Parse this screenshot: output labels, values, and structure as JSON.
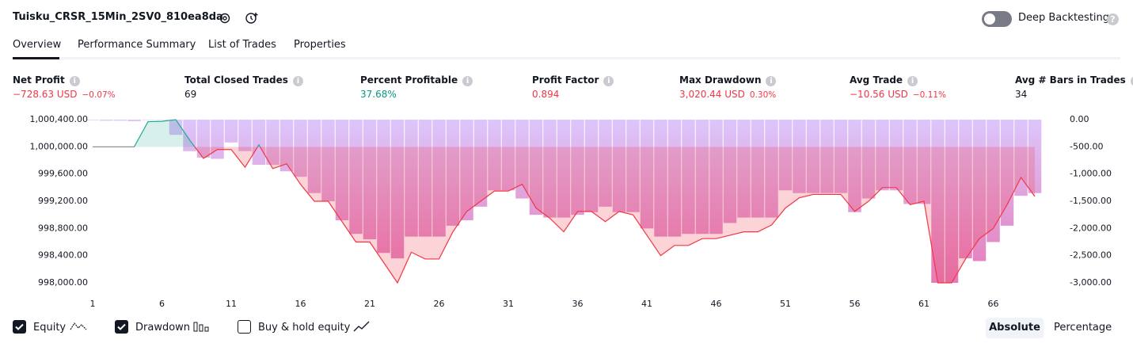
{
  "header": {
    "title": "Tuisku_CRSR_15Min_2SV0_810ea8da",
    "deep_backtesting": "Deep Backtesting"
  },
  "tabs": [
    "Overview",
    "Performance Summary",
    "List of Trades",
    "Properties"
  ],
  "metrics": [
    {
      "label": "Net Profit",
      "value": "−728.63 USD",
      "change": "−0.07%"
    },
    {
      "label": "Total Closed Trades",
      "value": "69"
    },
    {
      "label": "Percent Profitable",
      "value": "37.68%"
    },
    {
      "label": "Profit Factor",
      "value": "0.894"
    },
    {
      "label": "Max Drawdown",
      "value": "3,020.44 USD",
      "change": "0.30%"
    },
    {
      "label": "Avg Trade",
      "value": "−10.56 USD",
      "change": "−0.11%"
    },
    {
      "label": "Avg # Bars in Trades",
      "value": "34"
    }
  ],
  "chart_data": {
    "type": "combo",
    "x": [
      1,
      2,
      3,
      4,
      5,
      6,
      7,
      8,
      9,
      10,
      11,
      12,
      13,
      14,
      15,
      16,
      17,
      18,
      19,
      20,
      21,
      22,
      23,
      24,
      25,
      26,
      27,
      28,
      29,
      30,
      31,
      32,
      33,
      34,
      35,
      36,
      37,
      38,
      39,
      40,
      41,
      42,
      43,
      44,
      45,
      46,
      47,
      48,
      49,
      50,
      51,
      52,
      53,
      54,
      55,
      56,
      57,
      58,
      59,
      60,
      61,
      62,
      63,
      64,
      65,
      66,
      67,
      68,
      69
    ],
    "xlim": [
      0.6,
      71
    ],
    "xticks": [
      1,
      6,
      11,
      16,
      21,
      26,
      31,
      36,
      41,
      46,
      51,
      56,
      61,
      66
    ],
    "ylim": [
      998000,
      1000400
    ],
    "yticks": [
      {
        "value": 1000400,
        "label": "1,000,400.00"
      },
      {
        "value": 1000000,
        "label": "1,000,000.00"
      },
      {
        "value": 999600,
        "label": "999,600.00"
      },
      {
        "value": 999200,
        "label": "999,200.00"
      },
      {
        "value": 998800,
        "label": "998,800.00"
      },
      {
        "value": 998400,
        "label": "998,400.00"
      },
      {
        "value": 998000,
        "label": "998,000.00"
      }
    ],
    "y2lim": [
      -3000,
      0
    ],
    "y2ticks": [
      {
        "value": 0,
        "label": "0.00"
      },
      {
        "value": -500,
        "label": "-500.00"
      },
      {
        "value": -1000,
        "label": "-1,000.00"
      },
      {
        "value": -1500,
        "label": "-1,500.00"
      },
      {
        "value": -2000,
        "label": "-2,000.00"
      },
      {
        "value": -2500,
        "label": "-2,500.00"
      },
      {
        "value": -3000,
        "label": "-3,000.00"
      }
    ],
    "grid": false,
    "series": [
      {
        "name": "Equity",
        "type": "line",
        "color": "#f23645",
        "color_above": "#22ab94",
        "values": [
          1000000,
          1000000,
          1000000,
          1000000,
          1000370,
          1000375,
          1000400,
          1000100,
          999830,
          999960,
          999960,
          999700,
          1000030,
          999680,
          999750,
          999450,
          999200,
          999200,
          998900,
          998600,
          998600,
          998300,
          998000,
          998450,
          998350,
          998350,
          998750,
          999050,
          999200,
          999350,
          999350,
          999450,
          999100,
          998950,
          998750,
          999050,
          999050,
          998900,
          999050,
          999000,
          998700,
          998400,
          998550,
          998550,
          998650,
          998650,
          998700,
          998750,
          998750,
          998850,
          999100,
          999250,
          999300,
          999300,
          999300,
          999050,
          999200,
          999400,
          999400,
          999150,
          999200,
          998000,
          998000,
          998350,
          998650,
          998800,
          999150,
          999550,
          999270
        ]
      },
      {
        "name": "Drawdown",
        "type": "bar",
        "axis": "y2",
        "colors": [
          "#dcc6fb",
          "#e67ab7"
        ],
        "values": [
          -10,
          -20,
          -20,
          -30,
          0,
          0,
          -280,
          -580,
          -700,
          -720,
          -420,
          -580,
          -830,
          -830,
          -950,
          -1050,
          -1350,
          -1500,
          -1850,
          -2100,
          -2200,
          -2450,
          -2550,
          -2150,
          -2150,
          -2150,
          -1950,
          -1850,
          -1600,
          -1300,
          -1300,
          -1450,
          -1750,
          -1800,
          -1800,
          -1750,
          -1700,
          -1600,
          -1700,
          -1700,
          -2000,
          -2150,
          -2150,
          -2100,
          -2100,
          -2100,
          -1900,
          -1800,
          -1800,
          -1800,
          -1300,
          -1350,
          -1350,
          -1350,
          -1350,
          -1700,
          -1450,
          -1300,
          -1300,
          -1550,
          -1550,
          -3000,
          -3000,
          -2550,
          -2600,
          -2250,
          -1950,
          -1400,
          -1350
        ]
      }
    ]
  },
  "legend_extra": "Buy & hold equity",
  "view_modes": [
    "Absolute",
    "Percentage"
  ]
}
